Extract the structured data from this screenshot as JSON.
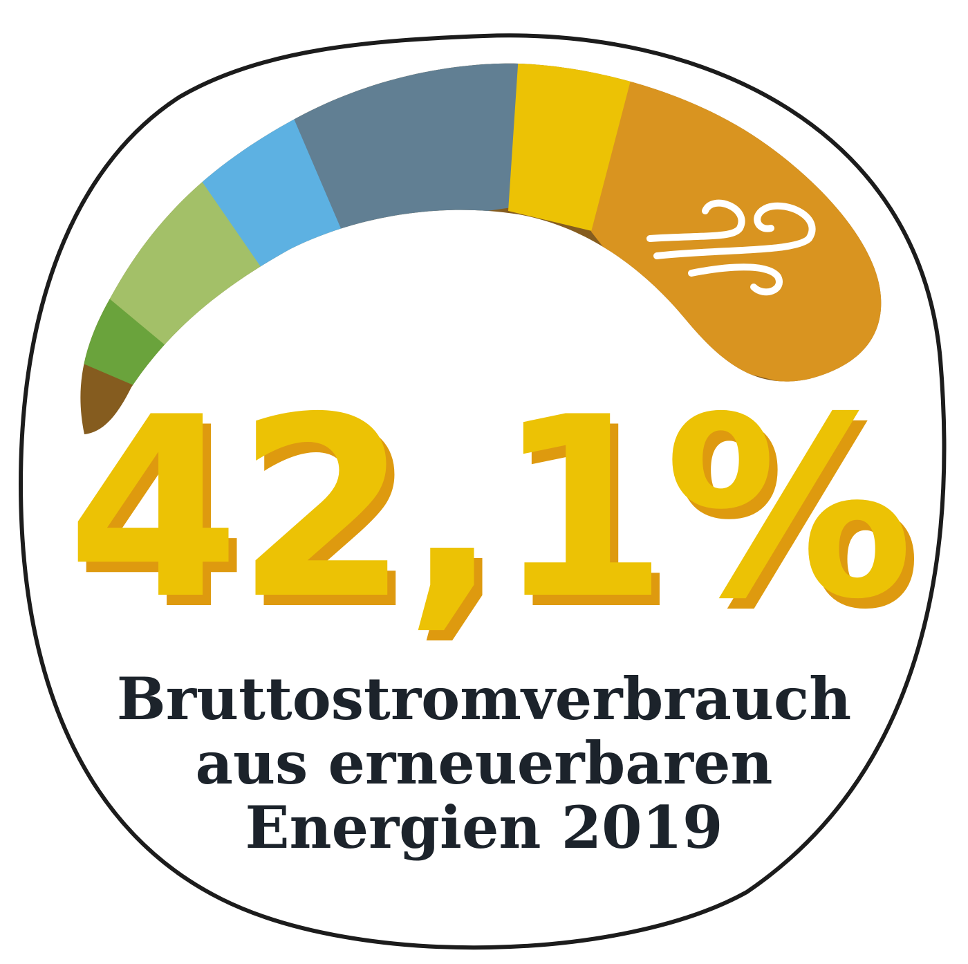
{
  "badge": {
    "value_text": "42,1%",
    "caption_lines": [
      "Bruttostromverbrauch",
      "aus erneuerbaren",
      "Energien 2019"
    ],
    "colors": {
      "outline": "#1c1c1c",
      "background": "#ffffff",
      "number_fill": "#ecc205",
      "number_shadow": "#de9a0f",
      "caption": "#1c232b"
    },
    "arc_segments": [
      {
        "name": "segment-brown",
        "color": "#855c1f"
      },
      {
        "name": "segment-dark-green",
        "color": "#6aa33c"
      },
      {
        "name": "segment-light-green",
        "color": "#a3c068"
      },
      {
        "name": "segment-light-blue",
        "color": "#5db1e2"
      },
      {
        "name": "segment-slate-blue",
        "color": "#617f93"
      },
      {
        "name": "segment-yellow",
        "color": "#ecc205"
      },
      {
        "name": "segment-orange",
        "color": "#d99420"
      }
    ],
    "icon": "wind-icon"
  }
}
